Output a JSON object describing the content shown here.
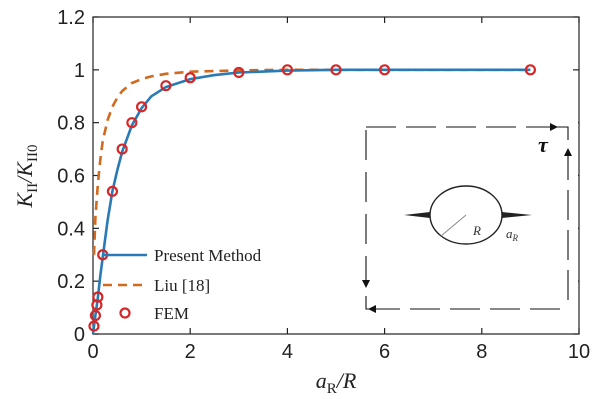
{
  "chart_data": {
    "type": "line",
    "x_axis": {
      "label_main": "a",
      "label_sub": "R",
      "label_tail": "/R",
      "range": [
        0,
        10
      ],
      "ticks": [
        0,
        2,
        4,
        6,
        8,
        10
      ],
      "tick_labels": [
        "0",
        "2",
        "4",
        "6",
        "8",
        "10"
      ]
    },
    "y_axis": {
      "label_num_main": "K",
      "label_num_sub": "II",
      "label_den_main": "K",
      "label_den_sub": "II0",
      "range": [
        0,
        1.2
      ],
      "ticks": [
        0,
        0.2,
        0.4,
        0.6,
        0.8,
        1.0,
        1.2
      ],
      "tick_labels": [
        "0",
        "0.2",
        "0.4",
        "0.6",
        "0.8",
        "1",
        "1.2"
      ]
    },
    "grid": false,
    "legend_position": "bottom-left",
    "series": [
      {
        "name": "Present Method",
        "style": "solid",
        "color": "#2a7ab5",
        "x": [
          0,
          0.02,
          0.05,
          0.08,
          0.1,
          0.15,
          0.2,
          0.3,
          0.4,
          0.5,
          0.6,
          0.8,
          1.0,
          1.2,
          1.5,
          2.0,
          2.5,
          3.0,
          4.0,
          5.0,
          6.0,
          7.0,
          8.0,
          9.0
        ],
        "y": [
          0,
          0.03,
          0.07,
          0.11,
          0.14,
          0.22,
          0.29,
          0.43,
          0.54,
          0.62,
          0.69,
          0.79,
          0.855,
          0.9,
          0.935,
          0.965,
          0.98,
          0.99,
          0.997,
          1.0,
          1.0,
          1.0,
          1.0,
          1.0
        ]
      },
      {
        "name": "Liu [18]",
        "style": "dashed",
        "color": "#d2691e",
        "x": [
          0.02,
          0.05,
          0.1,
          0.15,
          0.2,
          0.3,
          0.4,
          0.5,
          0.6,
          0.8,
          1.0,
          1.2,
          1.5,
          2.0,
          3.0,
          4.0,
          5.0,
          6.0,
          7.0,
          8.0,
          9.0
        ],
        "y": [
          0.3,
          0.44,
          0.57,
          0.66,
          0.73,
          0.81,
          0.86,
          0.895,
          0.92,
          0.95,
          0.965,
          0.975,
          0.985,
          0.993,
          0.998,
          1.0,
          1.0,
          1.0,
          1.0,
          1.0,
          1.0
        ]
      },
      {
        "name": "FEM",
        "style": "markers",
        "color": "#d62728",
        "x": [
          0.02,
          0.05,
          0.08,
          0.1,
          0.2,
          0.4,
          0.6,
          0.8,
          1.0,
          1.5,
          2.0,
          3.0,
          4.0,
          5.0,
          6.0,
          9.0
        ],
        "y": [
          0.03,
          0.07,
          0.11,
          0.14,
          0.3,
          0.54,
          0.7,
          0.8,
          0.86,
          0.94,
          0.97,
          0.99,
          1.0,
          1.0,
          1.0,
          1.0
        ]
      }
    ],
    "inset": {
      "labels": {
        "radius": "R",
        "crack": "a",
        "crack_sub": "R",
        "load": "τ"
      }
    }
  }
}
